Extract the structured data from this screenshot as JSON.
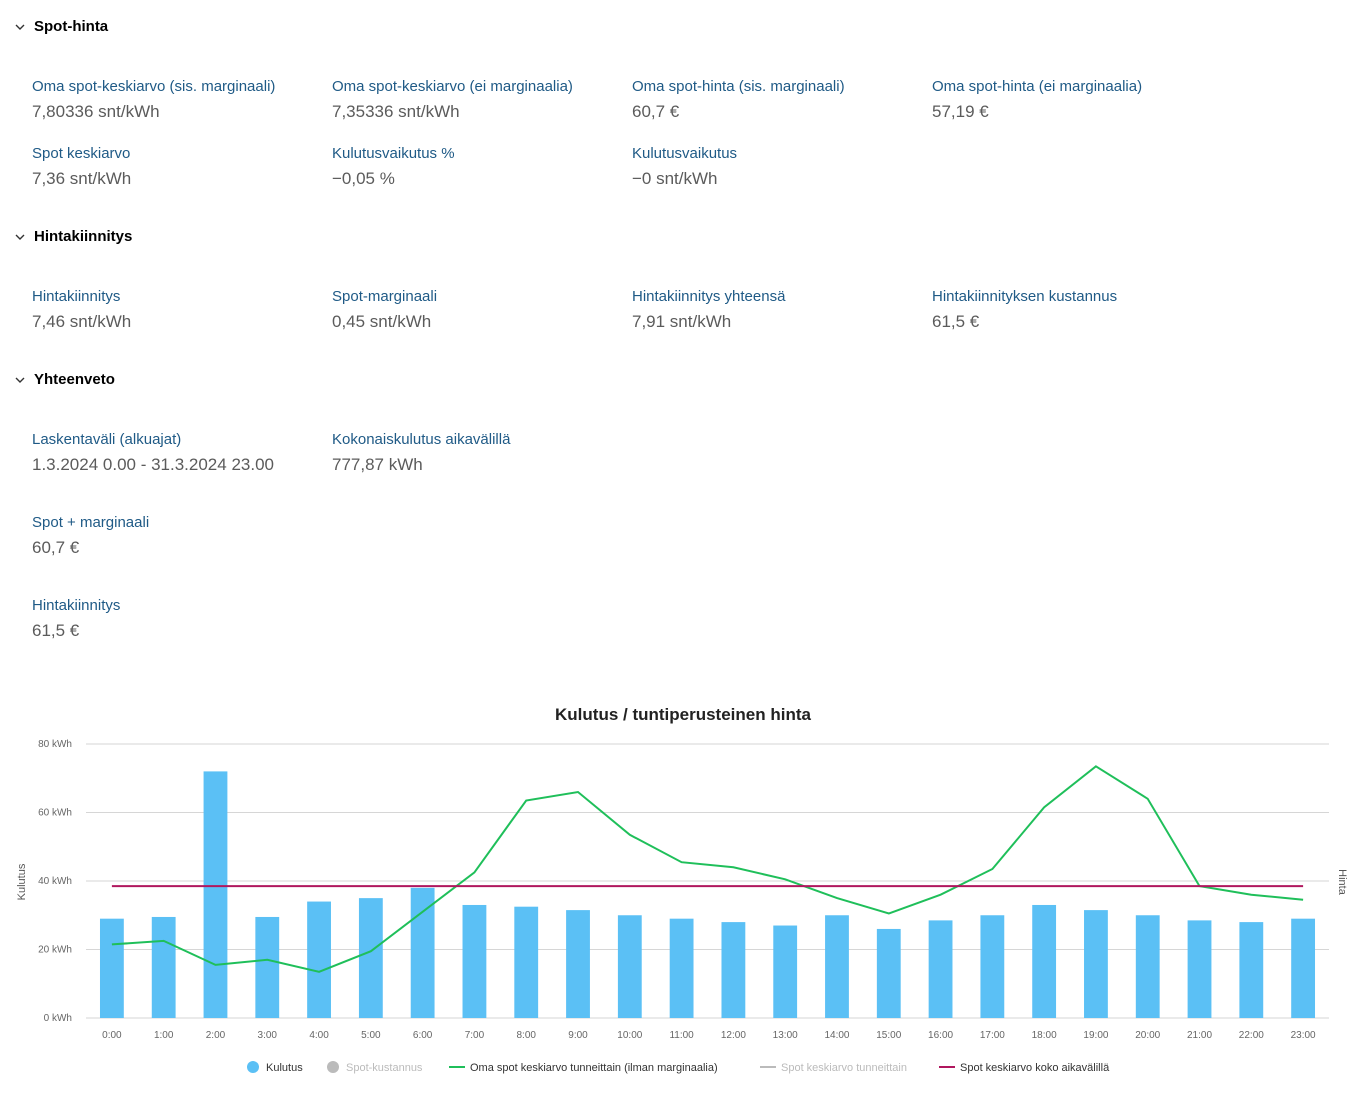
{
  "sections": {
    "spot": {
      "title": "Spot-hinta",
      "stats": [
        {
          "label": "Oma spot-keskiarvo (sis. marginaali)",
          "value": "7,80336 snt/kWh"
        },
        {
          "label": "Oma spot-keskiarvo (ei marginaalia)",
          "value": "7,35336 snt/kWh"
        },
        {
          "label": "Oma spot-hinta (sis. marginaali)",
          "value": "60,7 €"
        },
        {
          "label": "Oma spot-hinta (ei marginaalia)",
          "value": "57,19 €"
        },
        {
          "label": "Spot keskiarvo",
          "value": "7,36 snt/kWh"
        },
        {
          "label": "Kulutusvaikutus %",
          "value": "−0,05 %"
        },
        {
          "label": "Kulutusvaikutus",
          "value": "−0 snt/kWh"
        }
      ]
    },
    "hedge": {
      "title": "Hintakiinnitys",
      "stats": [
        {
          "label": "Hintakiinnitys",
          "value": "7,46 snt/kWh"
        },
        {
          "label": "Spot-marginaali",
          "value": "0,45 snt/kWh"
        },
        {
          "label": "Hintakiinnitys yhteensä",
          "value": "7,91 snt/kWh"
        },
        {
          "label": "Hintakiinnityksen kustannus",
          "value": "61,5 €"
        }
      ]
    },
    "summary": {
      "title": "Yhteenveto",
      "stats": [
        {
          "label": "Laskentaväli (alkuajat)",
          "value": "1.3.2024 0.00 - 31.3.2024 23.00"
        },
        {
          "label": "Kokonaiskulutus aikavälillä",
          "value": "777,87 kWh"
        },
        {
          "label": "Spot + marginaali",
          "value": "60,7 €"
        },
        {
          "label": "Hintakiinnitys",
          "value": "61,5 €"
        }
      ]
    }
  },
  "colors": {
    "bar": "#5bc0f5",
    "line_own": "#1fbf5a",
    "line_avg": "#b0175e",
    "muted": "#bbbbbb",
    "grid": "#d6d6d6"
  },
  "chart_data": {
    "type": "bar",
    "title": "Kulutus / tuntiperusteinen hinta",
    "ylabel": "Kulutus",
    "y2label": "Hinta",
    "ylim": [
      0,
      80
    ],
    "y_ticks": [
      "0 kWh",
      "20 kWh",
      "40 kWh",
      "60 kWh",
      "80 kWh"
    ],
    "categories": [
      "0:00",
      "1:00",
      "2:00",
      "3:00",
      "4:00",
      "5:00",
      "6:00",
      "7:00",
      "8:00",
      "9:00",
      "10:00",
      "11:00",
      "12:00",
      "13:00",
      "14:00",
      "15:00",
      "16:00",
      "17:00",
      "18:00",
      "19:00",
      "20:00",
      "21:00",
      "22:00",
      "23:00"
    ],
    "series": [
      {
        "name": "Kulutus",
        "kind": "bar",
        "values": [
          29,
          29.5,
          72,
          29.5,
          34,
          35,
          38,
          33,
          32.5,
          31.5,
          30,
          29,
          28,
          27,
          30,
          26,
          28.5,
          30,
          33,
          31.5,
          30,
          28.5,
          28,
          29
        ]
      },
      {
        "name": "Oma spot keskiarvo tunneittain (ilman marginaalia)",
        "kind": "line",
        "values": [
          21.5,
          22.5,
          15.5,
          17,
          13.5,
          19.5,
          31,
          42.5,
          63.5,
          66,
          53.5,
          45.5,
          44,
          40.5,
          35,
          30.5,
          36,
          43.5,
          61.5,
          73.5,
          64,
          38.5,
          36,
          34.5
        ]
      },
      {
        "name": "Spot keskiarvo koko aikavälillä",
        "kind": "line",
        "values": [
          38.5,
          38.5,
          38.5,
          38.5,
          38.5,
          38.5,
          38.5,
          38.5,
          38.5,
          38.5,
          38.5,
          38.5,
          38.5,
          38.5,
          38.5,
          38.5,
          38.5,
          38.5,
          38.5,
          38.5,
          38.5,
          38.5,
          38.5,
          38.5
        ]
      }
    ],
    "legend": [
      {
        "label": "Kulutus",
        "marker": "dot",
        "active": true
      },
      {
        "label": "Spot-kustannus",
        "marker": "dot",
        "active": false
      },
      {
        "label": "Oma spot keskiarvo tunneittain (ilman marginaalia)",
        "marker": "line",
        "active": true
      },
      {
        "label": "Spot keskiarvo tunneittain",
        "marker": "line",
        "active": false
      },
      {
        "label": "Spot keskiarvo koko aikavälillä",
        "marker": "line",
        "active": true
      }
    ]
  }
}
